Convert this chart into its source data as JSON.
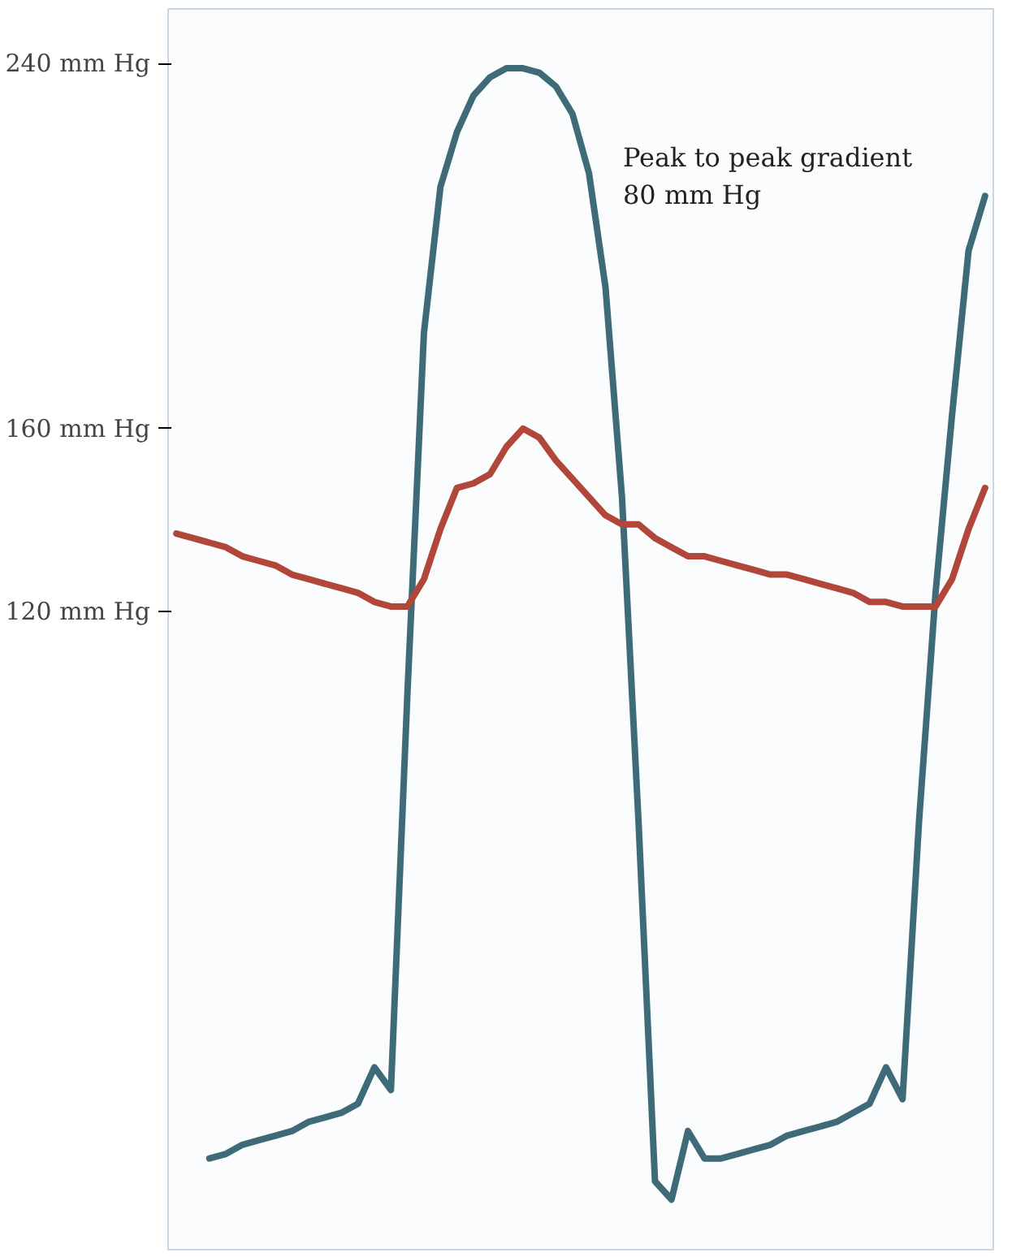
{
  "chart_data": {
    "type": "line",
    "categories": [
      null,
      null,
      null,
      null,
      null,
      null,
      null,
      null,
      null,
      null,
      null,
      null,
      null,
      null,
      null,
      null,
      null,
      null,
      null,
      null,
      null,
      null,
      null,
      null,
      null,
      null,
      null,
      null,
      null,
      null,
      null,
      null,
      null,
      null,
      null,
      null,
      null,
      null,
      null,
      null,
      null,
      null,
      null,
      null,
      null,
      null,
      null,
      null,
      null,
      null
    ],
    "series": [
      {
        "color": "#3f6b78",
        "values": [
          null,
          null,
          0,
          1,
          3,
          4,
          5,
          6,
          8,
          9,
          10,
          12,
          20,
          15,
          102,
          181,
          213,
          225,
          233,
          237,
          239,
          239,
          238,
          235,
          229,
          216,
          191,
          145,
          74,
          -5,
          -9,
          6,
          0,
          0,
          1,
          2,
          3,
          5,
          6,
          7,
          8,
          10,
          12,
          20,
          13,
          74,
          124,
          163,
          199,
          211
        ]
      },
      {
        "color": "#b0473a",
        "values": [
          137,
          136,
          135,
          134,
          132,
          131,
          130,
          128,
          127,
          126,
          125,
          124,
          122,
          121,
          121,
          127,
          138,
          147,
          148,
          150,
          156,
          160,
          158,
          153,
          149,
          145,
          141,
          139,
          139,
          136,
          134,
          132,
          132,
          131,
          130,
          129,
          128,
          128,
          127,
          126,
          125,
          124,
          122,
          122,
          121,
          121,
          121,
          127,
          138,
          147
        ]
      }
    ],
    "ylim": [
      -20,
      252
    ],
    "yticks": [
      {
        "value": 120,
        "label": "120 mm Hg"
      },
      {
        "value": 160,
        "label": "160 mm Hg"
      },
      {
        "value": 240,
        "label": "240 mm Hg"
      }
    ],
    "annotations": [
      "Peak to peak gradient\n80 mm Hg"
    ],
    "tick_labels": "y",
    "grid": false
  }
}
